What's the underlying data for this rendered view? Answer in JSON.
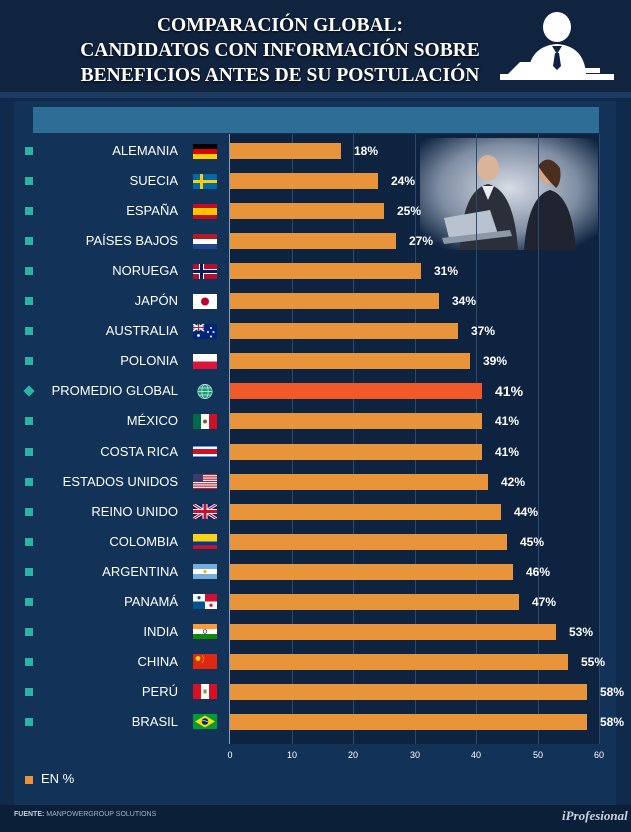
{
  "header": {
    "title_lines": [
      "COMPARACIÓN GLOBAL:",
      "CANDIDATOS CON INFORMACIÓN SOBRE",
      "BENEFICIOS ANTES DE SU POSTULACIÓN"
    ]
  },
  "chart_data": {
    "type": "bar",
    "orientation": "horizontal",
    "title": "COMPARACIÓN GLOBAL: CANDIDATOS CON INFORMACIÓN SOBRE BENEFICIOS ANTES DE SU POSTULACIÓN",
    "xlabel": "EN %",
    "ylabel": "",
    "xlim": [
      0,
      60
    ],
    "xticks": [
      0,
      10,
      20,
      30,
      40,
      50,
      60
    ],
    "grid": true,
    "categories": [
      "ALEMANIA",
      "SUECIA",
      "ESPAÑA",
      "PAÍSES BAJOS",
      "NORUEGA",
      "JAPÓN",
      "AUSTRALIA",
      "POLONIA",
      "PROMEDIO GLOBAL",
      "MÉXICO",
      "COSTA RICA",
      "ESTADOS UNIDOS",
      "REINO UNIDO",
      "COLOMBIA",
      "ARGENTINA",
      "PANAMÁ",
      "INDIA",
      "CHINA",
      "PERÚ",
      "BRASIL"
    ],
    "values": [
      18,
      24,
      25,
      27,
      31,
      34,
      37,
      39,
      41,
      41,
      41,
      42,
      44,
      45,
      46,
      47,
      53,
      55,
      58,
      58
    ],
    "value_labels": [
      "18%",
      "24%",
      "25%",
      "27%",
      "31%",
      "34%",
      "37%",
      "39%",
      "41%",
      "41%",
      "41%",
      "42%",
      "44%",
      "45%",
      "46%",
      "47%",
      "53%",
      "55%",
      "58%",
      "58%"
    ],
    "highlight": "PROMEDIO GLOBAL",
    "series_color": "#e8943a",
    "highlight_color": "#f05a28"
  },
  "flags": [
    "germany-flag",
    "sweden-flag",
    "spain-flag",
    "netherlands-flag",
    "norway-flag",
    "japan-flag",
    "australia-flag",
    "poland-flag",
    "globe-icon",
    "mexico-flag",
    "costa-rica-flag",
    "usa-flag",
    "uk-flag",
    "colombia-flag",
    "argentina-flag",
    "panama-flag",
    "india-flag",
    "china-flag",
    "peru-flag",
    "brazil-flag"
  ],
  "legend": {
    "label": "EN %"
  },
  "footer": {
    "source_label": "FUENTE:",
    "source_value": "MANPOWERGROUP SOLUTIONS",
    "brand": "iProfesional"
  },
  "colors": {
    "background": "#0f2a4a",
    "bar": "#e8943a",
    "highlight": "#f05a28",
    "bullet": "#2bb3a4"
  }
}
